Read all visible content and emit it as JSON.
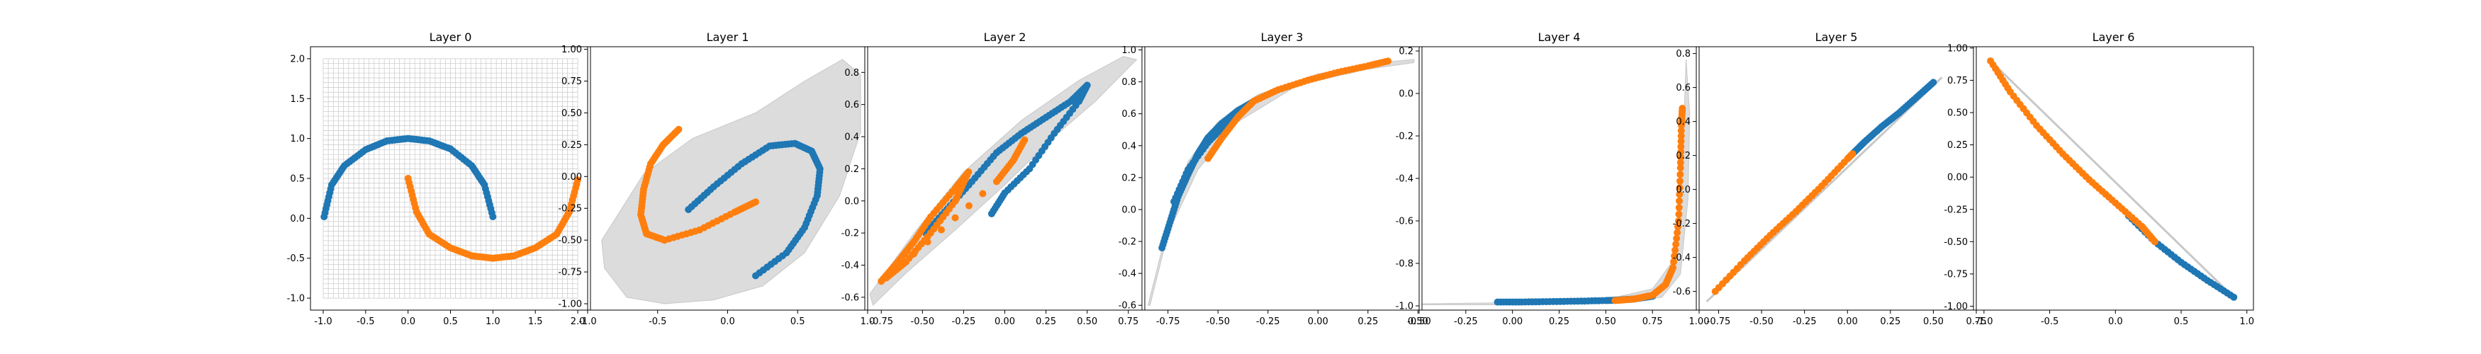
{
  "chart_data": [
    {
      "type": "scatter",
      "title": "Layer 0",
      "xlim": [
        -1.15,
        2.15
      ],
      "ylim": [
        -1.15,
        2.15
      ],
      "xticks": [
        "-1.0",
        "-0.5",
        "0.0",
        "0.5",
        "1.0",
        "1.5",
        "2.0"
      ],
      "yticks": [
        "-1.0",
        "-0.5",
        "0.0",
        "0.5",
        "1.0",
        "1.5",
        "2.0"
      ],
      "grid_mesh": {
        "x_range": [
          -1.0,
          2.0
        ],
        "y_range": [
          -1.0,
          2.0
        ],
        "lines": 50
      },
      "series": [
        {
          "color": "#1f77b4",
          "points": [
            [
              -0.99,
              0.02
            ],
            [
              -0.9,
              0.42
            ],
            [
              -0.75,
              0.66
            ],
            [
              -0.5,
              0.86
            ],
            [
              -0.25,
              0.97
            ],
            [
              0.0,
              1.0
            ],
            [
              0.25,
              0.97
            ],
            [
              0.5,
              0.87
            ],
            [
              0.75,
              0.66
            ],
            [
              0.9,
              0.42
            ],
            [
              1.0,
              0.02
            ]
          ]
        },
        {
          "color": "#ff7f0e",
          "points": [
            [
              0.0,
              0.5
            ],
            [
              0.1,
              0.08
            ],
            [
              0.25,
              -0.2
            ],
            [
              0.5,
              -0.37
            ],
            [
              0.75,
              -0.47
            ],
            [
              1.0,
              -0.5
            ],
            [
              1.25,
              -0.47
            ],
            [
              1.5,
              -0.37
            ],
            [
              1.75,
              -0.2
            ],
            [
              1.9,
              0.08
            ],
            [
              2.0,
              0.48
            ]
          ]
        }
      ]
    },
    {
      "type": "scatter",
      "title": "Layer 1",
      "xlim": [
        -1.0,
        1.0
      ],
      "ylim": [
        -1.05,
        1.02
      ],
      "xticks": [
        "-1.0",
        "-0.5",
        "0.0",
        "0.5",
        "1.0"
      ],
      "yticks": [
        "-1.00",
        "-0.75",
        "-0.50",
        "-0.25",
        "0.00",
        "0.25",
        "0.50",
        "0.75",
        "1.00"
      ],
      "hull": [
        [
          -0.88,
          -0.72
        ],
        [
          -0.72,
          -0.95
        ],
        [
          -0.45,
          -1.0
        ],
        [
          -0.1,
          -0.97
        ],
        [
          0.25,
          -0.86
        ],
        [
          0.55,
          -0.6
        ],
        [
          0.8,
          -0.15
        ],
        [
          0.95,
          0.35
        ],
        [
          0.95,
          0.8
        ],
        [
          0.82,
          0.92
        ],
        [
          0.55,
          0.75
        ],
        [
          0.2,
          0.5
        ],
        [
          -0.25,
          0.3
        ],
        [
          -0.6,
          0.02
        ],
        [
          -0.9,
          -0.5
        ]
      ],
      "series": [
        {
          "color": "#1f77b4",
          "points": [
            [
              -0.28,
              -0.26
            ],
            [
              -0.1,
              -0.08
            ],
            [
              0.1,
              0.1
            ],
            [
              0.3,
              0.24
            ],
            [
              0.48,
              0.26
            ],
            [
              0.6,
              0.2
            ],
            [
              0.66,
              0.06
            ],
            [
              0.64,
              -0.15
            ],
            [
              0.55,
              -0.4
            ],
            [
              0.42,
              -0.6
            ],
            [
              0.2,
              -0.78
            ]
          ]
        },
        {
          "color": "#ff7f0e",
          "points": [
            [
              -0.35,
              0.37
            ],
            [
              -0.46,
              0.25
            ],
            [
              -0.55,
              0.1
            ],
            [
              -0.6,
              -0.1
            ],
            [
              -0.62,
              -0.3
            ],
            [
              -0.58,
              -0.45
            ],
            [
              -0.45,
              -0.5
            ],
            [
              -0.2,
              -0.42
            ],
            [
              0.05,
              -0.28
            ],
            [
              0.2,
              -0.2
            ]
          ]
        }
      ]
    },
    {
      "type": "scatter",
      "title": "Layer 2",
      "xlim": [
        -0.85,
        0.85
      ],
      "ylim": [
        -0.68,
        0.96
      ],
      "xticks": [
        "-0.75",
        "-0.50",
        "-0.25",
        "0.00",
        "0.25",
        "0.50",
        "0.75"
      ],
      "yticks": [
        "-0.6",
        "-0.4",
        "-0.2",
        "0.0",
        "0.2",
        "0.4",
        "0.6",
        "0.8"
      ],
      "hull": [
        [
          -0.8,
          -0.65
        ],
        [
          -0.6,
          -0.45
        ],
        [
          -0.3,
          -0.18
        ],
        [
          0.0,
          0.1
        ],
        [
          0.3,
          0.4
        ],
        [
          0.55,
          0.62
        ],
        [
          0.8,
          0.88
        ],
        [
          0.72,
          0.9
        ],
        [
          0.45,
          0.75
        ],
        [
          0.1,
          0.5
        ],
        [
          -0.25,
          0.18
        ],
        [
          -0.55,
          -0.2
        ],
        [
          -0.82,
          -0.58
        ]
      ],
      "series": [
        {
          "color": "#1f77b4",
          "points": [
            [
              -0.48,
              -0.2
            ],
            [
              -0.35,
              -0.05
            ],
            [
              -0.2,
              0.12
            ],
            [
              -0.05,
              0.3
            ],
            [
              0.1,
              0.42
            ],
            [
              0.25,
              0.52
            ],
            [
              0.4,
              0.62
            ],
            [
              0.5,
              0.72
            ],
            [
              0.45,
              0.62
            ],
            [
              0.3,
              0.42
            ],
            [
              0.15,
              0.2
            ],
            [
              0.0,
              0.05
            ],
            [
              -0.08,
              -0.08
            ]
          ]
        },
        {
          "color": "#ff7f0e",
          "points": [
            [
              -0.75,
              -0.5
            ],
            [
              -0.65,
              -0.38
            ],
            [
              -0.55,
              -0.25
            ],
            [
              -0.45,
              -0.1
            ],
            [
              -0.3,
              0.08
            ],
            [
              -0.22,
              0.18
            ],
            [
              -0.3,
              0.0
            ],
            [
              -0.45,
              -0.2
            ],
            [
              -0.6,
              -0.38
            ],
            [
              -0.72,
              -0.48
            ],
            [
              -0.05,
              0.12
            ],
            [
              0.05,
              0.25
            ],
            [
              0.12,
              0.38
            ]
          ]
        }
      ]
    },
    {
      "type": "scatter",
      "title": "Layer 3",
      "xlim": [
        -0.88,
        0.52
      ],
      "ylim": [
        -0.63,
        1.02
      ],
      "xticks": [
        "-0.75",
        "-0.50",
        "-0.25",
        "0.00",
        "0.25",
        "0.50"
      ],
      "yticks": [
        "-0.6",
        "-0.4",
        "-0.2",
        "0.0",
        "0.2",
        "0.4",
        "0.6",
        "0.8",
        "1.0"
      ],
      "hull": [
        [
          -0.85,
          -0.6
        ],
        [
          -0.75,
          -0.1
        ],
        [
          -0.65,
          0.3
        ],
        [
          -0.5,
          0.55
        ],
        [
          -0.3,
          0.72
        ],
        [
          0.0,
          0.85
        ],
        [
          0.3,
          0.92
        ],
        [
          0.48,
          0.94
        ],
        [
          0.48,
          0.92
        ],
        [
          0.25,
          0.88
        ],
        [
          -0.1,
          0.78
        ],
        [
          -0.4,
          0.55
        ],
        [
          -0.6,
          0.25
        ],
        [
          -0.75,
          -0.15
        ],
        [
          -0.84,
          -0.6
        ]
      ],
      "series": [
        {
          "color": "#1f77b4",
          "points": [
            [
              -0.78,
              -0.24
            ],
            [
              -0.74,
              -0.08
            ],
            [
              -0.7,
              0.08
            ],
            [
              -0.65,
              0.22
            ],
            [
              -0.6,
              0.35
            ],
            [
              -0.55,
              0.45
            ],
            [
              -0.48,
              0.54
            ],
            [
              -0.4,
              0.62
            ],
            [
              -0.33,
              0.67
            ],
            [
              -0.45,
              0.55
            ],
            [
              -0.55,
              0.42
            ],
            [
              -0.65,
              0.25
            ],
            [
              -0.72,
              0.05
            ]
          ]
        },
        {
          "color": "#ff7f0e",
          "points": [
            [
              -0.55,
              0.32
            ],
            [
              -0.48,
              0.45
            ],
            [
              -0.4,
              0.58
            ],
            [
              -0.32,
              0.68
            ],
            [
              -0.2,
              0.75
            ],
            [
              -0.05,
              0.81
            ],
            [
              0.1,
              0.86
            ],
            [
              0.25,
              0.9
            ],
            [
              0.35,
              0.93
            ]
          ]
        }
      ]
    },
    {
      "type": "scatter",
      "title": "Layer 4",
      "xlim": [
        -0.5,
        1.0
      ],
      "ylim": [
        -1.02,
        0.22
      ],
      "xticks": [
        "-0.50",
        "-0.25",
        "0.00",
        "0.25",
        "0.50",
        "0.75",
        "1.00"
      ],
      "yticks": [
        "-1.0",
        "-0.8",
        "-0.6",
        "-0.4",
        "-0.2",
        "0.0",
        "0.2"
      ],
      "hull": [
        [
          -0.48,
          -0.99
        ],
        [
          0.0,
          -0.985
        ],
        [
          0.5,
          -0.97
        ],
        [
          0.75,
          -0.92
        ],
        [
          0.85,
          -0.8
        ],
        [
          0.9,
          -0.5
        ],
        [
          0.92,
          -0.1
        ],
        [
          0.93,
          0.16
        ],
        [
          0.95,
          -0.1
        ],
        [
          0.94,
          -0.5
        ],
        [
          0.9,
          -0.85
        ],
        [
          0.8,
          -0.96
        ],
        [
          0.5,
          -0.985
        ],
        [
          0.0,
          -0.995
        ],
        [
          -0.48,
          -0.995
        ]
      ],
      "series": [
        {
          "color": "#1f77b4",
          "points": [
            [
              -0.08,
              -0.982
            ],
            [
              0.05,
              -0.982
            ],
            [
              0.2,
              -0.98
            ],
            [
              0.35,
              -0.978
            ],
            [
              0.5,
              -0.975
            ],
            [
              0.58,
              -0.972
            ],
            [
              0.65,
              -0.968
            ],
            [
              0.75,
              -0.955
            ]
          ]
        },
        {
          "color": "#ff7f0e",
          "points": [
            [
              0.55,
              -0.975
            ],
            [
              0.65,
              -0.968
            ],
            [
              0.75,
              -0.95
            ],
            [
              0.82,
              -0.9
            ],
            [
              0.86,
              -0.82
            ],
            [
              0.89,
              -0.6
            ],
            [
              0.9,
              -0.35
            ],
            [
              0.905,
              -0.15
            ],
            [
              0.91,
              -0.07
            ]
          ]
        }
      ]
    },
    {
      "type": "scatter",
      "title": "Layer 5",
      "xlim": [
        -0.88,
        0.75
      ],
      "ylim": [
        -0.71,
        0.84
      ],
      "xticks": [
        "-0.75",
        "-0.50",
        "-0.25",
        "0.00",
        "0.25",
        "0.50",
        "0.75"
      ],
      "yticks": [
        "-0.6",
        "-0.4",
        "-0.2",
        "0.0",
        "0.2",
        "0.4",
        "0.6",
        "0.8"
      ],
      "hull": [
        [
          -0.82,
          -0.66
        ],
        [
          0.55,
          0.66
        ]
      ],
      "series": [
        {
          "color": "#1f77b4",
          "points": [
            [
              0.02,
              0.2
            ],
            [
              0.1,
              0.28
            ],
            [
              0.2,
              0.37
            ],
            [
              0.3,
              0.45
            ],
            [
              0.4,
              0.54
            ],
            [
              0.5,
              0.63
            ]
          ]
        },
        {
          "color": "#ff7f0e",
          "points": [
            [
              -0.77,
              -0.6
            ],
            [
              -0.6,
              -0.42
            ],
            [
              -0.45,
              -0.27
            ],
            [
              -0.3,
              -0.13
            ],
            [
              -0.15,
              0.02
            ],
            [
              0.0,
              0.18
            ],
            [
              0.03,
              0.21
            ]
          ]
        }
      ]
    },
    {
      "type": "scatter",
      "title": "Layer 6",
      "xlim": [
        -1.08,
        1.05
      ],
      "ylim": [
        -1.03,
        1.01
      ],
      "xticks": [
        "-1.0",
        "-0.5",
        "0.0",
        "0.5",
        "1.0"
      ],
      "yticks": [
        "-1.00",
        "-0.75",
        "-0.50",
        "-0.25",
        "0.00",
        "0.25",
        "0.50",
        "0.75",
        "1.00"
      ],
      "hull": [
        [
          -0.97,
          0.92
        ],
        [
          0.92,
          -0.95
        ]
      ],
      "series": [
        {
          "color": "#1f77b4",
          "points": [
            [
              0.1,
              -0.3
            ],
            [
              0.3,
              -0.5
            ],
            [
              0.5,
              -0.66
            ],
            [
              0.7,
              -0.8
            ],
            [
              0.9,
              -0.93
            ]
          ]
        },
        {
          "color": "#ff7f0e",
          "points": [
            [
              -0.95,
              0.9
            ],
            [
              -0.8,
              0.66
            ],
            [
              -0.6,
              0.4
            ],
            [
              -0.4,
              0.18
            ],
            [
              -0.2,
              -0.02
            ],
            [
              0.0,
              -0.2
            ],
            [
              0.2,
              -0.38
            ],
            [
              0.3,
              -0.5
            ]
          ]
        }
      ]
    }
  ]
}
